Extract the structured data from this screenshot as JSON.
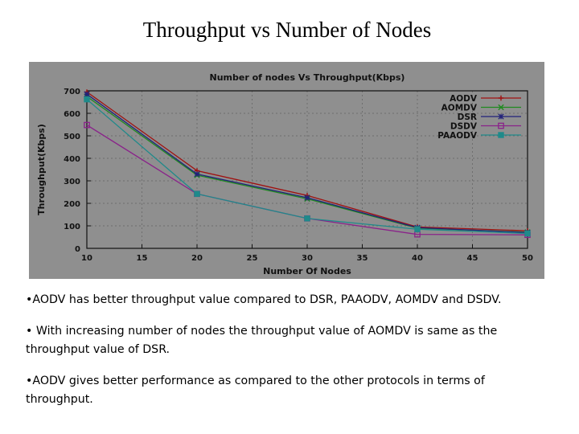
{
  "slide": {
    "title": "Throughput vs Number of Nodes",
    "bullets": [
      "•AODV has better throughput value compared to DSR, PAAODV, AOMDV and DSDV.",
      "• With increasing number of nodes the throughput value of AOMDV is same as the throughput value of DSR.",
      "•AODV gives better performance as compared to the other protocols in terms of throughput."
    ]
  },
  "colors": {
    "panel_bg": "#8f8f8f",
    "axis": "#111111",
    "grid": "#6e6e6e"
  },
  "chart_data": {
    "type": "line",
    "title": "Number of nodes Vs Throughput(Kbps)",
    "xlabel": "Number Of Nodes",
    "ylabel": "Throughput(Kbps)",
    "xlim": [
      10,
      50
    ],
    "ylim": [
      0,
      700
    ],
    "xticks": [
      10,
      15,
      20,
      25,
      30,
      35,
      40,
      45,
      50
    ],
    "yticks": [
      0,
      100,
      200,
      300,
      400,
      500,
      600,
      700
    ],
    "x": [
      10,
      20,
      30,
      40,
      50
    ],
    "legend_position": "top-right",
    "series": [
      {
        "name": "AODV",
        "color": "#a01010",
        "marker": "+",
        "values": [
          695,
          345,
          235,
          95,
          78
        ]
      },
      {
        "name": "AOMDV",
        "color": "#1f8a1f",
        "marker": "x",
        "values": [
          675,
          325,
          220,
          90,
          72
        ]
      },
      {
        "name": "DSR",
        "color": "#22227a",
        "marker": "*",
        "values": [
          685,
          330,
          225,
          92,
          70
        ]
      },
      {
        "name": "DSDV",
        "color": "#8a228a",
        "marker": "square",
        "values": [
          548,
          242,
          133,
          62,
          60
        ]
      },
      {
        "name": "PAAODV",
        "color": "#1f8a8a",
        "marker": "filled-square",
        "values": [
          662,
          242,
          133,
          85,
          66
        ]
      }
    ]
  }
}
